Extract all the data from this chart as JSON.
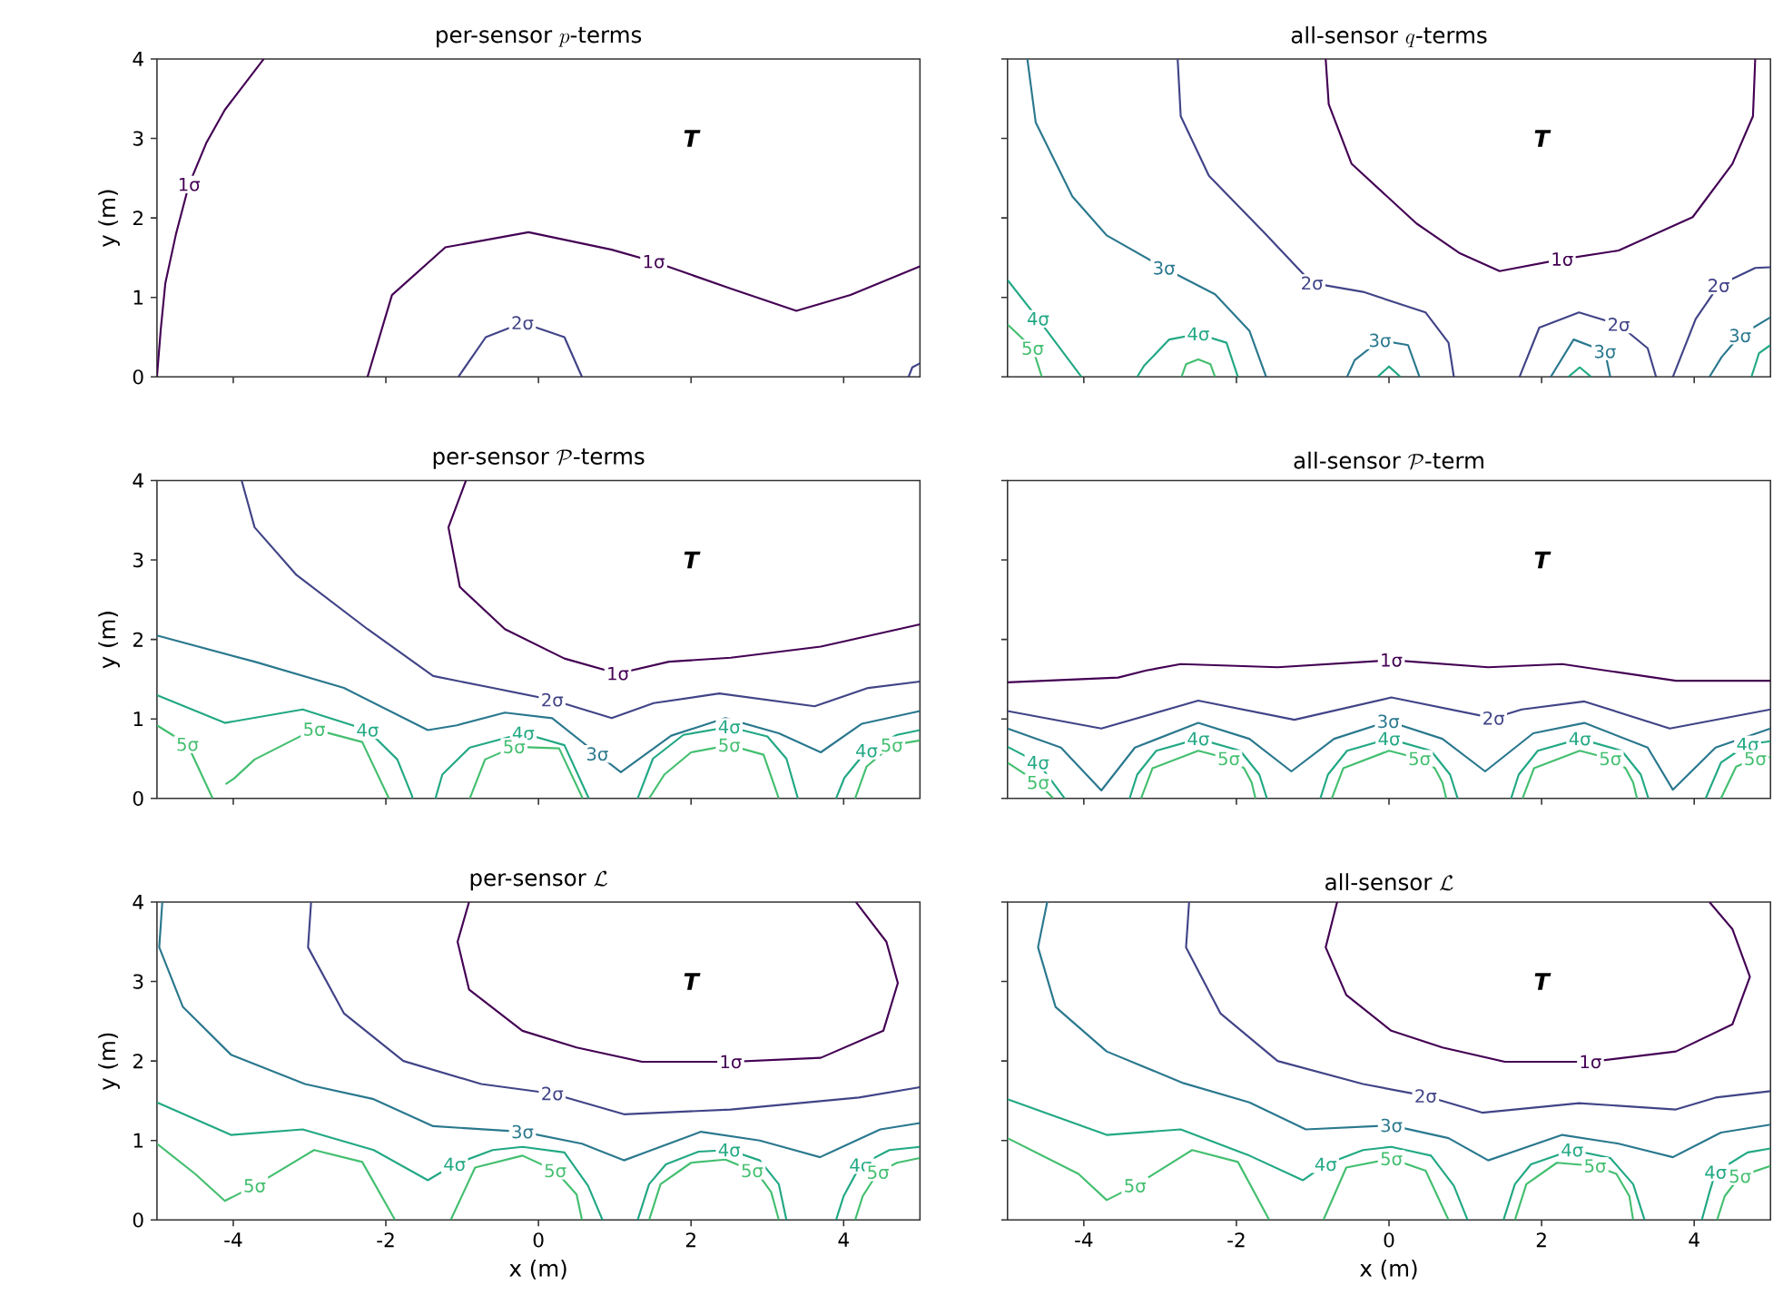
{
  "chart_data": [
    {
      "type": "line",
      "title": "\\text{per-sensor }p\\text{-terms}",
      "ylabel": "y (m)",
      "xlim": [
        -5,
        5
      ],
      "ylim": [
        0,
        4
      ],
      "xticks": [
        -4,
        -2,
        0,
        2,
        4
      ],
      "yticks": [
        0,
        1,
        2,
        3,
        4
      ],
      "tick_labels": "y",
      "annotations": [
        "**T**"
      ],
      "series": [
        {
          "name": "1σ",
          "color": "#440154",
          "x": [
            -5,
            -4.95,
            -4.89,
            -4.75,
            -4.58,
            -4.35,
            -4.11,
            -3.6
          ],
          "values": [
            0,
            0.6,
            1.18,
            1.8,
            2.42,
            2.95,
            3.36,
            4
          ]
        },
        {
          "name": "1σ",
          "color": "#440154",
          "x": [
            -2.24,
            -1.92,
            -1.22,
            -0.13,
            0.96,
            1.51,
            2.52,
            3.38,
            4.09,
            5
          ],
          "values": [
            0,
            1.03,
            1.63,
            1.82,
            1.6,
            1.45,
            1.11,
            0.83,
            1.03,
            1.39
          ]
        },
        {
          "name": "2σ",
          "color": "#414487",
          "x": [
            -1.05,
            -0.69,
            -0.21,
            0.34,
            0.57
          ],
          "values": [
            0,
            0.5,
            0.68,
            0.5,
            0
          ]
        },
        {
          "color": "#414487",
          "x": [
            4.85,
            4.9,
            5
          ],
          "values": [
            0,
            0.12,
            0.17
          ]
        }
      ]
    },
    {
      "type": "line",
      "title": "\\text{all-sensor }q\\text{-terms}",
      "xlim": [
        -5,
        5
      ],
      "ylim": [
        0,
        4
      ],
      "xticks": [
        -4,
        -2,
        0,
        2,
        4
      ],
      "yticks": [
        0,
        1,
        2,
        3,
        4
      ],
      "tick_labels": false,
      "annotations": [
        "**T**"
      ],
      "series": [
        {
          "name": "3σ",
          "color": "#2a788e",
          "x": [
            -4.74,
            -4.63,
            -4.15,
            -3.7,
            -2.95,
            -2.28,
            -1.83,
            -1.61
          ],
          "values": [
            4,
            3.2,
            2.27,
            1.78,
            1.37,
            1.04,
            0.58,
            0
          ]
        },
        {
          "name": "2σ",
          "color": "#414487",
          "x": [
            -2.77,
            -2.73,
            -2.36,
            -1.68,
            -1.01,
            -0.34,
            0.48,
            0.78,
            0.85
          ],
          "values": [
            4,
            3.28,
            2.53,
            1.86,
            1.18,
            1.07,
            0.81,
            0.43,
            0
          ]
        },
        {
          "name": "1σ",
          "color": "#440154",
          "x": [
            -0.83,
            -0.79,
            -0.49,
            0.36,
            0.92,
            1.45,
            2.27,
            3.01,
            3.98,
            4.5,
            4.77,
            4.8
          ],
          "values": [
            4,
            3.43,
            2.68,
            1.93,
            1.56,
            1.33,
            1.48,
            1.59,
            2.01,
            2.68,
            3.28,
            4
          ]
        },
        {
          "name": "4σ",
          "color": "#22a884",
          "x": [
            -5,
            -4.6,
            -4.03
          ],
          "values": [
            1.22,
            0.73,
            0
          ]
        },
        {
          "name": "5σ",
          "color": "#44bf70",
          "x": [
            -5,
            -4.67,
            -4.55
          ],
          "values": [
            0.66,
            0.36,
            0
          ]
        },
        {
          "name": "4σ",
          "color": "#22a884",
          "x": [
            -3.3,
            -3.21,
            -2.88,
            -2.5,
            -2.13,
            -1.98
          ],
          "values": [
            0,
            0.14,
            0.47,
            0.54,
            0.43,
            0
          ]
        },
        {
          "color": "#44bf70",
          "x": [
            -2.72,
            -2.66,
            -2.5,
            -2.34,
            -2.28
          ],
          "values": [
            0,
            0.16,
            0.22,
            0.16,
            0
          ]
        },
        {
          "name": "3σ",
          "color": "#2a788e",
          "x": [
            -0.55,
            -0.45,
            -0.12,
            0.25,
            0.4
          ],
          "values": [
            0,
            0.21,
            0.46,
            0.4,
            0
          ]
        },
        {
          "color": "#22a884",
          "x": [
            -0.15,
            0,
            0.15
          ],
          "values": [
            0,
            0.13,
            0
          ]
        },
        {
          "name": "2σ",
          "color": "#414487",
          "x": [
            1.71,
            1.97,
            2.49,
            3.01,
            3.39,
            3.5
          ],
          "values": [
            0,
            0.62,
            0.81,
            0.66,
            0.36,
            0
          ]
        },
        {
          "name": "3σ",
          "color": "#2a788e",
          "x": [
            2.12,
            2.42,
            2.83,
            2.9
          ],
          "values": [
            0,
            0.47,
            0.32,
            0
          ]
        },
        {
          "color": "#22a884",
          "x": [
            2.35,
            2.5,
            2.65
          ],
          "values": [
            0,
            0.12,
            0
          ]
        },
        {
          "name": "2σ",
          "color": "#414487",
          "x": [
            3.72,
            4.02,
            4.32,
            4.8,
            5
          ],
          "values": [
            0,
            0.73,
            1.15,
            1.37,
            1.38
          ]
        },
        {
          "name": "3σ",
          "color": "#2a788e",
          "x": [
            4.2,
            4.36,
            4.6,
            5
          ],
          "values": [
            0,
            0.25,
            0.52,
            0.75
          ]
        },
        {
          "color": "#22a884",
          "x": [
            4.75,
            4.85,
            5
          ],
          "values": [
            0,
            0.3,
            0.4
          ]
        }
      ]
    },
    {
      "type": "line",
      "title": "\\text{per-sensor }\\mathcal{P}\\text{-terms}",
      "ylabel": "y (m)",
      "xlim": [
        -5,
        5
      ],
      "ylim": [
        0,
        4
      ],
      "xticks": [
        -4,
        -2,
        0,
        2,
        4
      ],
      "yticks": [
        0,
        1,
        2,
        3,
        4
      ],
      "tick_labels": "y",
      "annotations": [
        "**T**"
      ],
      "series": [
        {
          "name": "2σ",
          "color": "#414487",
          "x": [
            -3.89,
            -3.72,
            -3.17,
            -2.24,
            -1.38,
            -0.6,
            0.18,
            0.96,
            1.51,
            2.37,
            3.62,
            4.32,
            5
          ],
          "values": [
            4,
            3.41,
            2.81,
            2.13,
            1.54,
            1.39,
            1.24,
            1.01,
            1.2,
            1.32,
            1.16,
            1.39,
            1.47
          ]
        },
        {
          "name": "1σ",
          "color": "#440154",
          "x": [
            -0.95,
            -1.18,
            -1.03,
            -0.44,
            0.34,
            1.04,
            1.71,
            2.52,
            3.7,
            5
          ],
          "values": [
            4,
            3.41,
            2.66,
            2.13,
            1.76,
            1.57,
            1.72,
            1.77,
            1.91,
            2.19
          ]
        },
        {
          "name": "3σ",
          "color": "#2a788e",
          "x": [
            -5,
            -3.72,
            -2.55,
            -1.45,
            -1.07,
            -0.44,
            0.18,
            0.77,
            1.08,
            1.74,
            2.45,
            3.15,
            3.7,
            4.24,
            5
          ],
          "values": [
            2.05,
            1.72,
            1.39,
            0.86,
            0.92,
            1.08,
            1.01,
            0.56,
            0.33,
            0.79,
            1.01,
            0.82,
            0.58,
            0.94,
            1.1
          ]
        },
        {
          "name": "4σ",
          "color": "#22a884",
          "x": [
            -5,
            -4.11,
            -3.09,
            -2.24,
            -1.85,
            -1.66,
            -1.65
          ],
          "values": [
            1.3,
            0.95,
            1.12,
            0.86,
            0.49,
            0.04,
            0
          ]
        },
        {
          "name": "4σ",
          "color": "#22a884",
          "x": [
            -1.35,
            -1.26,
            -0.9,
            -0.2,
            0.34,
            0.66
          ],
          "values": [
            0,
            0.3,
            0.64,
            0.82,
            0.67,
            0
          ]
        },
        {
          "name": "5σ",
          "color": "#44bf70",
          "x": [
            -0.9,
            -0.7,
            -0.32,
            0.27,
            0.58
          ],
          "values": [
            0,
            0.49,
            0.65,
            0.63,
            0
          ]
        },
        {
          "name": "5σ",
          "color": "#44bf70",
          "x": [
            -5,
            -4.6,
            -4.27
          ],
          "values": [
            0.92,
            0.68,
            0
          ]
        },
        {
          "name": "5σ",
          "color": "#44bf70",
          "x": [
            -4.1,
            -3.99,
            -3.72,
            -2.94,
            -2.31,
            -1.96
          ],
          "values": [
            0.18,
            0.25,
            0.49,
            0.87,
            0.71,
            0
          ]
        },
        {
          "name": "4σ",
          "color": "#22a884",
          "x": [
            1.3,
            1.5,
            1.9,
            2.5,
            3.0,
            3.25,
            3.4
          ],
          "values": [
            0,
            0.5,
            0.8,
            0.9,
            0.78,
            0.5,
            0
          ]
        },
        {
          "name": "5σ",
          "color": "#44bf70",
          "x": [
            1.45,
            1.65,
            2.0,
            2.5,
            2.95,
            3.15
          ],
          "values": [
            0,
            0.3,
            0.58,
            0.67,
            0.55,
            0
          ]
        },
        {
          "name": "4σ",
          "color": "#22a884",
          "x": [
            3.9,
            4.01,
            4.3,
            4.7,
            5
          ],
          "values": [
            0,
            0.26,
            0.6,
            0.8,
            0.86
          ]
        },
        {
          "name": "5σ",
          "color": "#44bf70",
          "x": [
            4.15,
            4.3,
            4.63,
            5
          ],
          "values": [
            0,
            0.4,
            0.67,
            0.73
          ]
        }
      ]
    },
    {
      "type": "line",
      "title": "\\text{all-sensor }\\mathcal{P}\\text{-term}",
      "xlim": [
        -5,
        5
      ],
      "ylim": [
        0,
        4
      ],
      "xticks": [
        -4,
        -2,
        0,
        2,
        4
      ],
      "yticks": [
        0,
        1,
        2,
        3,
        4
      ],
      "tick_labels": false,
      "annotations": [
        "**T**"
      ],
      "series": [
        {
          "name": "1σ",
          "color": "#440154",
          "x": [
            -5,
            -3.55,
            -3.18,
            -2.73,
            -1.46,
            0.03,
            1.3,
            2.27,
            3.76,
            5
          ],
          "values": [
            1.46,
            1.52,
            1.61,
            1.69,
            1.65,
            1.74,
            1.65,
            1.69,
            1.48,
            1.48
          ]
        },
        {
          "name": "2σ",
          "color": "#414487",
          "x": [
            -5,
            -3.77,
            -2.5,
            -1.24,
            0.03,
            1.37,
            1.74,
            2.56,
            3.68,
            5
          ],
          "values": [
            1.1,
            0.88,
            1.23,
            0.99,
            1.27,
            1.01,
            1.12,
            1.22,
            0.88,
            1.12
          ]
        },
        {
          "name": "3σ",
          "color": "#2a788e",
          "x": [
            -5,
            -4.3,
            -3.77,
            -3.33,
            -2.5,
            -1.83,
            -1.28,
            -0.72,
            -0.01,
            0.7,
            1.26,
            1.89,
            2.56,
            3.39,
            3.72,
            4.28,
            5
          ],
          "values": [
            0.88,
            0.64,
            0.1,
            0.64,
            0.95,
            0.75,
            0.34,
            0.75,
            0.97,
            0.75,
            0.34,
            0.82,
            0.95,
            0.64,
            0.11,
            0.64,
            0.88
          ]
        },
        {
          "name": "4σ",
          "color": "#22a884",
          "x": [
            -5,
            -4.6,
            -4.25
          ],
          "values": [
            0.65,
            0.45,
            0
          ]
        },
        {
          "name": "5σ",
          "color": "#44bf70",
          "x": [
            -5,
            -4.6,
            -4.4
          ],
          "values": [
            0.45,
            0.2,
            0
          ]
        },
        {
          "name": "4σ",
          "color": "#22a884",
          "x": [
            -3.4,
            -3.3,
            -3.05,
            -2.5,
            -1.95,
            -1.7,
            -1.6
          ],
          "values": [
            0,
            0.3,
            0.6,
            0.75,
            0.6,
            0.3,
            0
          ]
        },
        {
          "name": "5σ",
          "color": "#44bf70",
          "x": [
            -3.25,
            -3.1,
            -2.5,
            -2.1,
            -1.9,
            -1.8,
            -1.75
          ],
          "values": [
            0,
            0.38,
            0.6,
            0.5,
            0.38,
            0.2,
            0
          ]
        },
        {
          "name": "4σ",
          "color": "#22a884",
          "x": [
            -0.9,
            -0.8,
            -0.55,
            0,
            0.55,
            0.8,
            0.9
          ],
          "values": [
            0,
            0.3,
            0.6,
            0.75,
            0.6,
            0.3,
            0
          ]
        },
        {
          "name": "5σ",
          "color": "#44bf70",
          "x": [
            -0.75,
            -0.6,
            0,
            0.4,
            0.6,
            0.7,
            0.75
          ],
          "values": [
            0,
            0.38,
            0.6,
            0.5,
            0.38,
            0.2,
            0
          ]
        },
        {
          "name": "4σ",
          "color": "#22a884",
          "x": [
            1.6,
            1.7,
            1.95,
            2.5,
            3.05,
            3.3,
            3.4
          ],
          "values": [
            0,
            0.3,
            0.6,
            0.75,
            0.6,
            0.3,
            0
          ]
        },
        {
          "name": "5σ",
          "color": "#44bf70",
          "x": [
            1.75,
            1.9,
            2.5,
            2.9,
            3.1,
            3.2,
            3.25
          ],
          "values": [
            0,
            0.38,
            0.6,
            0.5,
            0.38,
            0.2,
            0
          ]
        },
        {
          "name": "4σ",
          "color": "#22a884",
          "x": [
            4.15,
            4.35,
            4.7,
            5
          ],
          "values": [
            0,
            0.45,
            0.68,
            0.72
          ]
        },
        {
          "name": "5σ",
          "color": "#44bf70",
          "x": [
            4.35,
            4.55,
            4.8,
            5
          ],
          "values": [
            0,
            0.4,
            0.5,
            0.52
          ]
        }
      ]
    },
    {
      "type": "line",
      "title": "\\text{per-sensor }\\mathcal{L}",
      "xlabel": "x (m)",
      "ylabel": "y (m)",
      "xlim": [
        -5,
        5
      ],
      "ylim": [
        0,
        4
      ],
      "xticks": [
        -4,
        -2,
        0,
        2,
        4
      ],
      "yticks": [
        0,
        1,
        2,
        3,
        4
      ],
      "annotations": [
        "**T**"
      ],
      "series": [
        {
          "name": "3σ",
          "color": "#2a788e",
          "x": [
            -4.93,
            -4.97,
            -4.66,
            -4.03,
            -3.06,
            -2.16,
            -1.38,
            -0.21,
            0.57,
            1.12,
            2.13,
            2.9,
            3.69,
            4.48,
            5
          ],
          "values": [
            4,
            3.43,
            2.68,
            2.08,
            1.71,
            1.52,
            1.18,
            1.11,
            0.96,
            0.75,
            1.11,
            1.0,
            0.79,
            1.14,
            1.22
          ]
        },
        {
          "name": "2σ",
          "color": "#414487",
          "x": [
            -2.98,
            -3.02,
            -2.55,
            -1.77,
            -0.75,
            0.18,
            1.12,
            2.52,
            4.2,
            5
          ],
          "values": [
            4,
            3.43,
            2.6,
            2.0,
            1.71,
            1.59,
            1.33,
            1.39,
            1.54,
            1.67
          ]
        },
        {
          "name": "1σ",
          "color": "#440154",
          "x": [
            -0.91,
            -1.06,
            -0.91,
            -0.21,
            0.5,
            1.36,
            2.52,
            3.7,
            4.52,
            4.71,
            4.56,
            4.16
          ],
          "values": [
            4,
            3.5,
            2.9,
            2.38,
            2.17,
            1.99,
            1.99,
            2.04,
            2.38,
            2.98,
            3.5,
            4
          ]
        },
        {
          "name": "4σ",
          "color": "#22a884",
          "x": [
            -5,
            -4.03,
            -3.09,
            -2.16,
            -1.45,
            -1.1,
            -0.6,
            -0.21,
            0.34,
            0.65,
            0.84
          ],
          "values": [
            1.48,
            1.07,
            1.14,
            0.88,
            0.5,
            0.7,
            0.88,
            0.92,
            0.85,
            0.43,
            0
          ]
        },
        {
          "name": "5σ",
          "color": "#44bf70",
          "x": [
            -5,
            -4.5,
            -4.11,
            -3.72,
            -2.94,
            -2.31,
            -1.88
          ],
          "values": [
            0.96,
            0.58,
            0.24,
            0.43,
            0.88,
            0.73,
            0
          ]
        },
        {
          "name": "5σ",
          "color": "#44bf70",
          "x": [
            -1.15,
            -0.83,
            -0.21,
            0.22,
            0.5,
            0.57
          ],
          "values": [
            0,
            0.66,
            0.81,
            0.62,
            0.32,
            0
          ]
        },
        {
          "name": "4σ",
          "color": "#22a884",
          "x": [
            1.3,
            1.45,
            1.67,
            2.1,
            2.5,
            2.9,
            3.15,
            3.25
          ],
          "values": [
            0,
            0.45,
            0.7,
            0.86,
            0.88,
            0.75,
            0.45,
            0
          ]
        },
        {
          "name": "5σ",
          "color": "#44bf70",
          "x": [
            1.45,
            1.6,
            2.0,
            2.45,
            2.8,
            2.9,
            3.05,
            3.15
          ],
          "values": [
            0,
            0.45,
            0.72,
            0.76,
            0.62,
            0.55,
            0.35,
            0
          ]
        },
        {
          "name": "4σ",
          "color": "#22a884",
          "x": [
            3.9,
            4.0,
            4.22,
            4.6,
            5
          ],
          "values": [
            0,
            0.3,
            0.69,
            0.88,
            0.92
          ]
        },
        {
          "name": "5σ",
          "color": "#44bf70",
          "x": [
            4.15,
            4.25,
            4.45,
            4.7,
            5
          ],
          "values": [
            0,
            0.3,
            0.6,
            0.72,
            0.78
          ]
        }
      ]
    },
    {
      "type": "line",
      "title": "\\text{all-sensor }\\mathcal{L}",
      "xlabel": "x (m)",
      "xlim": [
        -5,
        5
      ],
      "ylim": [
        0,
        4
      ],
      "xticks": [
        -4,
        -2,
        0,
        2,
        4
      ],
      "yticks": [
        0,
        1,
        2,
        3,
        4
      ],
      "tick_labels": "x",
      "annotations": [
        "**T**"
      ],
      "series": [
        {
          "name": "3σ",
          "color": "#2a788e",
          "x": [
            -4.48,
            -4.6,
            -4.37,
            -3.7,
            -2.69,
            -1.83,
            -1.09,
            0.03,
            0.78,
            1.3,
            2.27,
            3.01,
            3.72,
            4.35,
            5
          ],
          "values": [
            4,
            3.43,
            2.68,
            2.12,
            1.72,
            1.48,
            1.14,
            1.19,
            1.03,
            0.75,
            1.07,
            0.96,
            0.79,
            1.1,
            1.2
          ]
        },
        {
          "name": "2σ",
          "color": "#414487",
          "x": [
            -2.62,
            -2.66,
            -2.21,
            -1.46,
            -0.34,
            0.48,
            1.22,
            2.49,
            3.76,
            4.28,
            5
          ],
          "values": [
            4,
            3.43,
            2.6,
            2.0,
            1.71,
            1.56,
            1.35,
            1.47,
            1.39,
            1.54,
            1.62
          ]
        },
        {
          "name": "1σ",
          "color": "#440154",
          "x": [
            -0.68,
            -0.83,
            -0.56,
            0.03,
            0.7,
            1.52,
            2.64,
            3.76,
            4.5,
            4.73,
            4.5,
            4.2
          ],
          "values": [
            4,
            3.43,
            2.83,
            2.38,
            2.17,
            1.99,
            1.99,
            2.12,
            2.46,
            3.06,
            3.66,
            4
          ]
        },
        {
          "name": "4σ",
          "color": "#22a884",
          "x": [
            -5,
            -3.7,
            -2.73,
            -1.83,
            -1.13,
            -0.83,
            -0.34,
            0.03,
            0.55,
            0.85,
            1.03
          ],
          "values": [
            1.52,
            1.07,
            1.14,
            0.81,
            0.5,
            0.7,
            0.88,
            0.92,
            0.81,
            0.43,
            0
          ]
        },
        {
          "name": "5σ",
          "color": "#44bf70",
          "x": [
            -5,
            -4.07,
            -3.7,
            -3.33,
            -2.58,
            -1.98,
            -1.57
          ],
          "values": [
            1.03,
            0.58,
            0.25,
            0.43,
            0.88,
            0.73,
            0
          ]
        },
        {
          "name": "5σ",
          "color": "#44bf70",
          "x": [
            -0.86,
            -0.56,
            0.03,
            0.48,
            0.78
          ],
          "values": [
            0,
            0.66,
            0.77,
            0.62,
            0
          ]
        },
        {
          "name": "4σ",
          "color": "#22a884",
          "x": [
            1.5,
            1.65,
            1.86,
            2.4,
            2.9,
            3.2,
            3.35
          ],
          "values": [
            0,
            0.45,
            0.7,
            0.88,
            0.78,
            0.45,
            0
          ]
        },
        {
          "name": "5σ",
          "color": "#44bf70",
          "x": [
            1.65,
            1.8,
            2.2,
            2.7,
            2.98,
            3.15,
            3.2
          ],
          "values": [
            0,
            0.45,
            0.72,
            0.68,
            0.58,
            0.3,
            0
          ]
        },
        {
          "name": "4σ",
          "color": "#22a884",
          "x": [
            4.1,
            4.2,
            4.28,
            4.7,
            5
          ],
          "values": [
            0,
            0.35,
            0.6,
            0.85,
            0.9
          ]
        },
        {
          "name": "5σ",
          "color": "#44bf70",
          "x": [
            4.3,
            4.4,
            4.6,
            5
          ],
          "values": [
            0,
            0.3,
            0.55,
            0.68
          ]
        }
      ]
    }
  ]
}
